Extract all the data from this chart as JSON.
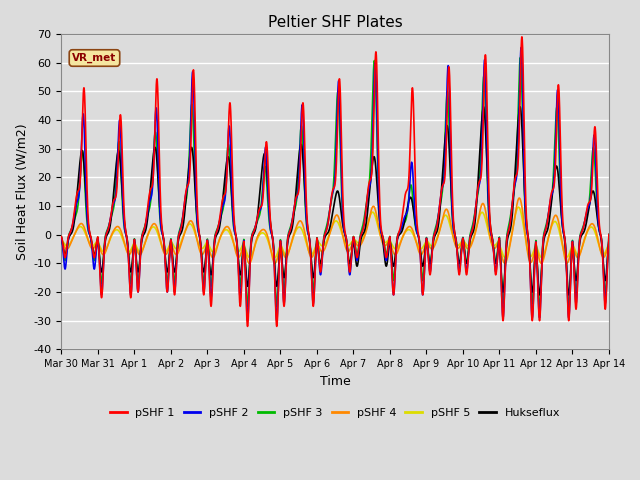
{
  "title": "Peltier SHF Plates",
  "xlabel": "Time",
  "ylabel": "Soil Heat Flux (W/m2)",
  "ylim": [
    -40,
    70
  ],
  "xlim": [
    0,
    15
  ],
  "bg_color": "#dcdcdc",
  "series_colors": {
    "pSHF 1": "#ff0000",
    "pSHF 2": "#0000ee",
    "pSHF 3": "#00bb00",
    "pSHF 4": "#ff8800",
    "pSHF 5": "#dddd00",
    "Hukseflux": "#000000"
  },
  "xtick_labels": [
    "Mar 30",
    "Mar 31",
    "Apr 1",
    "Apr 2",
    "Apr 3",
    "Apr 4",
    "Apr 5",
    "Apr 6",
    "Apr 7",
    "Apr 8",
    "Apr 9",
    "Apr 10",
    "Apr 11",
    "Apr 12",
    "Apr 13",
    "Apr 14"
  ],
  "ytick_vals": [
    -40,
    -30,
    -20,
    -10,
    0,
    10,
    20,
    30,
    40,
    50,
    60,
    70
  ],
  "peaks1": [
    49,
    40,
    52,
    55,
    44,
    31,
    44,
    52,
    61,
    49,
    56,
    60,
    66,
    50,
    36
  ],
  "troughs1": [
    -8,
    -22,
    -20,
    -21,
    -25,
    -32,
    -25,
    -13,
    -8,
    -21,
    -14,
    -14,
    -30,
    -30,
    -26
  ],
  "peaks2": [
    40,
    38,
    42,
    54,
    36,
    29,
    43,
    51,
    57,
    24,
    56,
    58,
    62,
    48,
    33
  ],
  "troughs2": [
    -12,
    -21,
    -20,
    -20,
    -22,
    -30,
    -24,
    -14,
    -9,
    -21,
    -13,
    -13,
    -29,
    -29,
    -24
  ],
  "peaks3": [
    27,
    30,
    33,
    42,
    29,
    22,
    35,
    46,
    56,
    16,
    46,
    51,
    57,
    41,
    28
  ],
  "troughs3": [
    -9,
    -17,
    -17,
    -17,
    -18,
    -25,
    -20,
    -12,
    -7,
    -16,
    -11,
    -10,
    -24,
    -26,
    -21
  ],
  "peaks4": [
    4,
    3,
    4,
    5,
    3,
    2,
    5,
    7,
    10,
    3,
    9,
    11,
    13,
    7,
    4
  ],
  "troughs4": [
    -5,
    -7,
    -7,
    -7,
    -8,
    -10,
    -8,
    -6,
    -4,
    -7,
    -5,
    -5,
    -10,
    -10,
    -8
  ],
  "peaks5": [
    3,
    2,
    3,
    4,
    2,
    1,
    3,
    5,
    8,
    2,
    7,
    8,
    10,
    5,
    3
  ],
  "troughs5": [
    -4,
    -6,
    -6,
    -5,
    -6,
    -8,
    -7,
    -4,
    -3,
    -5,
    -4,
    -4,
    -8,
    -8,
    -7
  ],
  "peaks_huk": [
    27,
    27,
    28,
    28,
    25,
    26,
    29,
    14,
    25,
    12,
    35,
    41,
    41,
    22,
    14
  ],
  "troughs_huk": [
    -7,
    -13,
    -13,
    -13,
    -14,
    -18,
    -15,
    -10,
    -11,
    -11,
    -10,
    -10,
    -20,
    -21,
    -16
  ],
  "lw": 1.2
}
